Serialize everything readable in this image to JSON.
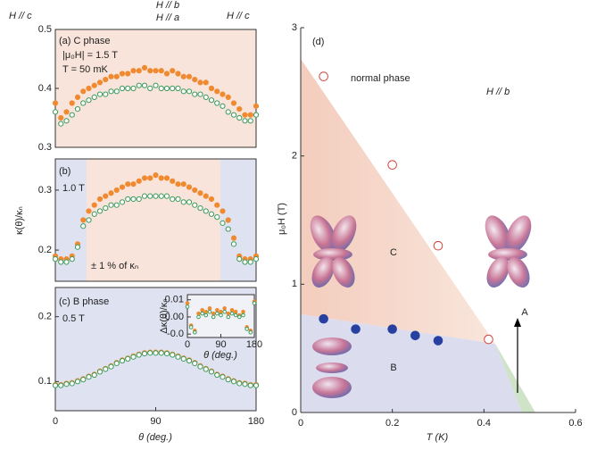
{
  "chart_data": [
    {
      "type": "scatter",
      "xlim": [
        0,
        180
      ],
      "ylim": [
        0.3,
        0.5
      ],
      "yticks": [
        0.3,
        0.4,
        0.5
      ],
      "annotations": [
        "(a) C phase",
        "|μ₀H| = 1.5 T",
        "T = 50 mK",
        "H // c",
        "H // c"
      ],
      "x": [
        0,
        5,
        10,
        15,
        20,
        25,
        30,
        35,
        40,
        45,
        50,
        55,
        60,
        65,
        70,
        75,
        80,
        85,
        90,
        95,
        100,
        105,
        110,
        115,
        120,
        125,
        130,
        135,
        140,
        145,
        150,
        155,
        160,
        165,
        170,
        175,
        180
      ],
      "series": [
        {
          "name": "H // b",
          "color": "#f08a30",
          "marker": "filled",
          "values": [
            0.375,
            0.35,
            0.36,
            0.375,
            0.385,
            0.395,
            0.4,
            0.405,
            0.41,
            0.415,
            0.42,
            0.42,
            0.425,
            0.425,
            0.43,
            0.43,
            0.435,
            0.43,
            0.43,
            0.43,
            0.425,
            0.43,
            0.425,
            0.42,
            0.42,
            0.415,
            0.41,
            0.41,
            0.4,
            0.395,
            0.39,
            0.385,
            0.375,
            0.365,
            0.355,
            0.355,
            0.37
          ]
        },
        {
          "name": "H // a",
          "color": "#3a9a5a",
          "marker": "open",
          "values": [
            0.36,
            0.34,
            0.345,
            0.355,
            0.365,
            0.375,
            0.38,
            0.385,
            0.39,
            0.39,
            0.395,
            0.395,
            0.4,
            0.4,
            0.4,
            0.405,
            0.405,
            0.4,
            0.405,
            0.4,
            0.4,
            0.4,
            0.4,
            0.395,
            0.395,
            0.39,
            0.39,
            0.385,
            0.38,
            0.375,
            0.37,
            0.36,
            0.355,
            0.35,
            0.345,
            0.345,
            0.355
          ]
        }
      ]
    },
    {
      "type": "scatter",
      "xlim": [
        0,
        180
      ],
      "ylim": [
        0.148,
        0.352
      ],
      "yticks": [
        0.2,
        0.3
      ],
      "y_label": "κ(θ)/κₙ",
      "annotations": [
        "(b)",
        "1.0 T",
        "± 1 % of κₙ"
      ],
      "x": [
        0,
        5,
        10,
        15,
        20,
        25,
        30,
        35,
        40,
        45,
        50,
        55,
        60,
        65,
        70,
        75,
        80,
        85,
        90,
        95,
        100,
        105,
        110,
        115,
        120,
        125,
        130,
        135,
        140,
        145,
        150,
        155,
        160,
        165,
        170,
        175,
        180
      ],
      "series": [
        {
          "color": "#f08a30",
          "marker": "filled",
          "values": [
            0.19,
            0.185,
            0.185,
            0.19,
            0.21,
            0.25,
            0.265,
            0.275,
            0.285,
            0.29,
            0.295,
            0.3,
            0.305,
            0.31,
            0.31,
            0.315,
            0.32,
            0.32,
            0.325,
            0.32,
            0.32,
            0.315,
            0.31,
            0.31,
            0.305,
            0.3,
            0.295,
            0.29,
            0.285,
            0.275,
            0.265,
            0.25,
            0.22,
            0.19,
            0.185,
            0.185,
            0.19
          ]
        },
        {
          "color": "#3a9a5a",
          "marker": "open",
          "values": [
            0.185,
            0.18,
            0.18,
            0.185,
            0.205,
            0.24,
            0.25,
            0.26,
            0.265,
            0.27,
            0.275,
            0.275,
            0.28,
            0.285,
            0.285,
            0.285,
            0.29,
            0.29,
            0.29,
            0.29,
            0.29,
            0.285,
            0.285,
            0.28,
            0.28,
            0.275,
            0.27,
            0.265,
            0.26,
            0.255,
            0.245,
            0.235,
            0.21,
            0.185,
            0.18,
            0.18,
            0.185
          ]
        }
      ]
    },
    {
      "type": "scatter",
      "xlim": [
        0,
        180
      ],
      "ylim": [
        0.055,
        0.245
      ],
      "yticks": [
        0.1,
        0.2
      ],
      "xticks": [
        0,
        90,
        180
      ],
      "x_label": "θ (deg.)",
      "annotations": [
        "(c) B phase",
        "0.5 T"
      ],
      "x": [
        0,
        5,
        10,
        15,
        20,
        25,
        30,
        35,
        40,
        45,
        50,
        55,
        60,
        65,
        70,
        75,
        80,
        85,
        90,
        95,
        100,
        105,
        110,
        115,
        120,
        125,
        130,
        135,
        140,
        145,
        150,
        155,
        160,
        165,
        170,
        175,
        180
      ],
      "series": [
        {
          "color": "#f08a30",
          "marker": "filled",
          "values": [
            0.095,
            0.095,
            0.097,
            0.098,
            0.101,
            0.104,
            0.108,
            0.111,
            0.116,
            0.12,
            0.124,
            0.129,
            0.133,
            0.136,
            0.139,
            0.142,
            0.144,
            0.145,
            0.145,
            0.145,
            0.144,
            0.142,
            0.139,
            0.136,
            0.133,
            0.129,
            0.124,
            0.12,
            0.116,
            0.111,
            0.108,
            0.104,
            0.101,
            0.098,
            0.097,
            0.095,
            0.095
          ]
        },
        {
          "color": "#3a9a5a",
          "marker": "open",
          "values": [
            0.094,
            0.094,
            0.096,
            0.097,
            0.1,
            0.103,
            0.107,
            0.11,
            0.115,
            0.119,
            0.123,
            0.128,
            0.132,
            0.135,
            0.138,
            0.141,
            0.143,
            0.144,
            0.144,
            0.144,
            0.143,
            0.141,
            0.138,
            0.135,
            0.132,
            0.128,
            0.123,
            0.119,
            0.115,
            0.11,
            0.107,
            0.103,
            0.1,
            0.097,
            0.096,
            0.094,
            0.094
          ]
        }
      ]
    },
    {
      "type": "scatter",
      "xlim": [
        0,
        0.6
      ],
      "ylim": [
        0,
        3
      ],
      "xticks": [
        0,
        0.2,
        0.4,
        0.6
      ],
      "yticks": [
        0,
        1,
        2,
        3
      ],
      "x_label": "T (K)",
      "y_label": "μ₀H (T)",
      "annotations": [
        "(d)",
        "normal phase",
        "H // b",
        "C",
        "B",
        "A"
      ],
      "series": [
        {
          "color": "#d0453f",
          "marker": "open",
          "x": [
            0.05,
            0.2,
            0.3,
            0.41
          ],
          "values": [
            2.62,
            1.93,
            1.3,
            0.57
          ]
        },
        {
          "color": "#2840a0",
          "marker": "filled",
          "x": [
            0.05,
            0.12,
            0.2,
            0.25,
            0.3
          ],
          "values": [
            0.73,
            0.65,
            0.65,
            0.6,
            0.56
          ]
        }
      ]
    },
    {
      "type": "scatter",
      "xlim": [
        0,
        180
      ],
      "ylim": [
        -0.012,
        0.013
      ],
      "xticks": [
        0,
        90,
        180
      ],
      "yticks": [
        {
          "value": 0.01,
          "label": "0.01"
        },
        {
          "value": 0,
          "label": "0.00"
        },
        {
          "value": -0.01,
          "label": "-0.0"
        }
      ],
      "x_label": "θ (deg.)",
      "y_label": "Δκ(θ)/κₙ",
      "x": [
        0,
        10,
        20,
        30,
        40,
        50,
        60,
        70,
        80,
        90,
        100,
        110,
        120,
        130,
        140,
        150,
        160,
        170,
        180
      ],
      "series": [
        {
          "color": "#f08a30",
          "marker": "filled",
          "values": [
            0.008,
            -0.005,
            -0.008,
            0.002,
            0.004,
            0.003,
            0.005,
            0.002,
            0.004,
            0.003,
            0.005,
            0.002,
            0.004,
            0.003,
            0.001,
            0.003,
            -0.006,
            -0.008,
            0.009
          ]
        },
        {
          "color": "#3a9a5a",
          "marker": "open",
          "values": [
            0.006,
            -0.006,
            -0.009,
            0.0,
            0.002,
            0.001,
            0.003,
            0.0,
            0.002,
            0.001,
            0.003,
            0.0,
            0.002,
            0.001,
            0.0,
            0.001,
            -0.007,
            -0.009,
            0.008
          ]
        }
      ]
    }
  ]
}
